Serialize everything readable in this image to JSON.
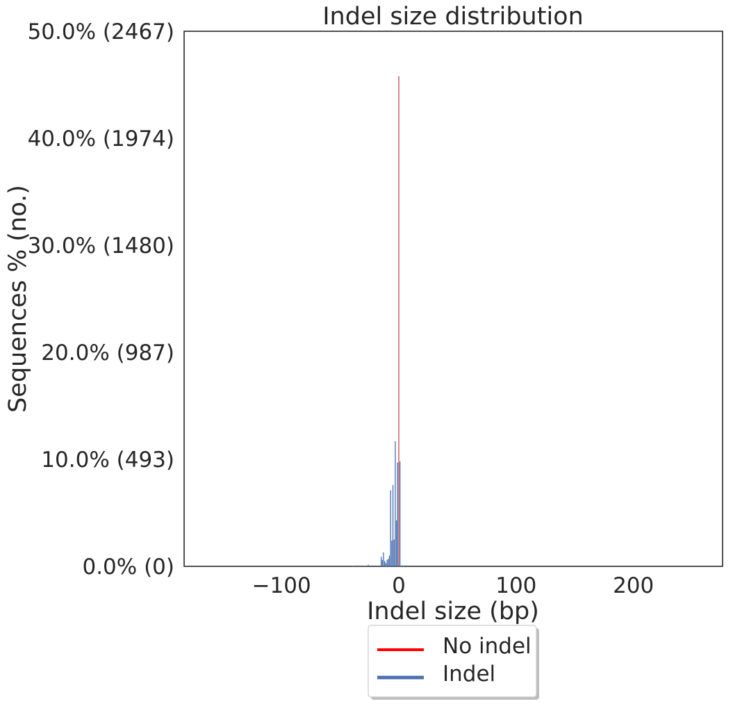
{
  "chart_data": {
    "type": "bar",
    "title": "Indel size distribution",
    "xlabel": "Indel size (bp)",
    "ylabel": "Sequences % (no.)",
    "xlim": [
      -183,
      276
    ],
    "ylim": [
      0,
      50
    ],
    "grid": false,
    "x_ticks": [
      -100,
      0,
      100,
      200
    ],
    "x_tick_labels": [
      "−100",
      "0",
      "100",
      "200"
    ],
    "y_ticks": [
      0,
      10,
      20,
      30,
      40,
      50
    ],
    "y_tick_labels": [
      "0.0% (0)",
      "10.0% (493)",
      "20.0% (987)",
      "30.0% (1480)",
      "40.0% (1974)",
      "50.0% (2467)"
    ],
    "legend_position": "below",
    "series": [
      {
        "name": "No indel",
        "color": "#ff0000",
        "bar_color": "#c44e52",
        "x": [
          0
        ],
        "values": [
          45.8
        ]
      },
      {
        "name": "Indel",
        "color": "#4c72b0",
        "bar_color": "#4c72b0",
        "x": [
          -39,
          -33,
          -29,
          -26,
          -15,
          -14,
          -13,
          -12,
          -11,
          -10,
          -9,
          -8,
          -7,
          -6,
          -5,
          -4,
          -3,
          -2,
          -1,
          1,
          2,
          3,
          4,
          6
        ],
        "values": [
          0.05,
          0.08,
          0.05,
          0.15,
          0.9,
          0.6,
          1.3,
          0.5,
          0.3,
          0.6,
          0.7,
          1.0,
          7.1,
          2.4,
          7.6,
          2.5,
          11.7,
          4.3,
          9.7,
          9.8,
          0.05,
          0.1,
          0.05,
          0.08
        ]
      }
    ]
  }
}
